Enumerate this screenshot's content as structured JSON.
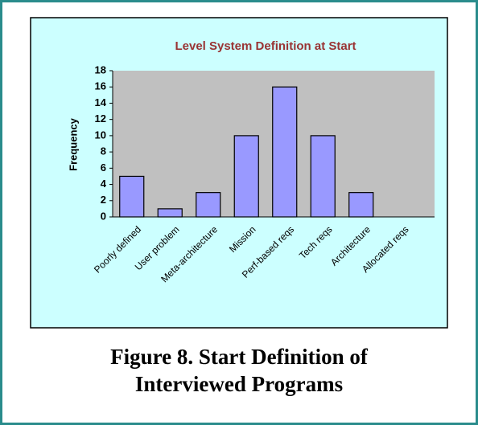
{
  "chart_data": {
    "type": "bar",
    "title": "Level System Definition at Start",
    "ylabel": "Frequency",
    "categories": [
      "Poorly defined",
      "User problem",
      "Meta-architecture",
      "Mission",
      "Perf-based reqs",
      "Tech reqs",
      "Architecture",
      "Allocated reqs"
    ],
    "values": [
      5,
      1,
      3,
      10,
      16,
      10,
      3,
      0
    ],
    "color": "#9999ff",
    "ylim": [
      0,
      18
    ],
    "yticks": [
      0,
      2,
      4,
      6,
      8,
      10,
      12,
      14,
      16,
      18
    ],
    "grid": false
  },
  "caption": [
    "Figure 8.  Start Definition of",
    "Interviewed Programs"
  ]
}
